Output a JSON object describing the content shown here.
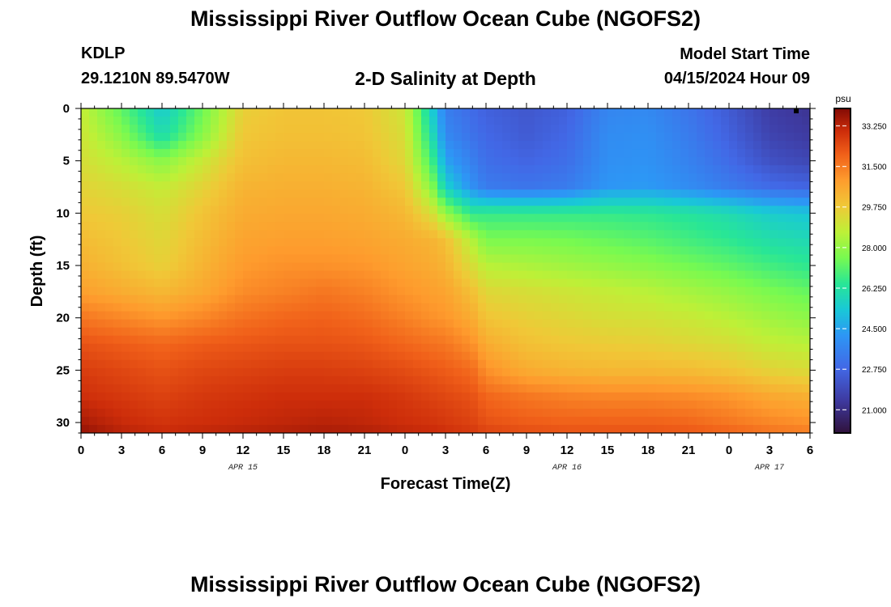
{
  "header": {
    "title": "Mississippi River Outflow Ocean Cube (NGOFS2)",
    "station": "KDLP",
    "coordinates": "29.1210N  89.5470W",
    "plot_title": "2-D Salinity at Depth",
    "model_start_label": "Model Start Time",
    "model_start_value": "04/15/2024 Hour 09"
  },
  "footer": {
    "title": "Mississippi River Outflow Ocean Cube (NGOFS2)"
  },
  "chart_data": {
    "type": "heatmap",
    "title": "2-D Salinity at Depth",
    "xlabel": "Forecast Time(Z)",
    "ylabel": "Depth (ft)",
    "x_tick_labels": [
      "0",
      "3",
      "6",
      "9",
      "12",
      "15",
      "18",
      "21",
      "0",
      "3",
      "6",
      "9",
      "12",
      "15",
      "18",
      "21",
      "0",
      "3",
      "6"
    ],
    "x_hours": [
      0,
      3,
      6,
      9,
      12,
      15,
      18,
      21,
      24,
      27,
      30,
      33,
      36,
      39,
      42,
      45,
      48,
      51,
      54
    ],
    "date_labels": [
      {
        "label": "APR 15",
        "hour": 12
      },
      {
        "label": "APR 16",
        "hour": 36
      },
      {
        "label": "APR 17",
        "hour": 51
      }
    ],
    "xlim": [
      0,
      54
    ],
    "y_ticks": [
      0,
      5,
      10,
      15,
      20,
      25,
      30
    ],
    "ylim": [
      0,
      31
    ],
    "y_inverted": true,
    "colorbar": {
      "unit": "psu",
      "min": 20.0,
      "max": 34.0,
      "tick_values": [
        33.25,
        31.5,
        29.75,
        28.0,
        26.25,
        24.5,
        22.75,
        21.0
      ],
      "tick_labels": [
        "33.250",
        "31.500",
        "29.750",
        "28.000",
        "26.250",
        "24.500",
        "22.750",
        "21.000"
      ]
    },
    "grid": {
      "depths": [
        0,
        2.5,
        5,
        7.5,
        10,
        12.5,
        15,
        17.5,
        20,
        22.5,
        25,
        27.5,
        30,
        31
      ],
      "hours": [
        0,
        3,
        6,
        9,
        12,
        15,
        18,
        21,
        24,
        26,
        27,
        29,
        30,
        33,
        36,
        39,
        42,
        45,
        48,
        51,
        54
      ],
      "salinity": [
        [
          28.8,
          27.2,
          25.4,
          27.4,
          29.6,
          29.9,
          29.9,
          29.8,
          29.0,
          25.5,
          23.5,
          22.9,
          22.6,
          22.3,
          22.6,
          23.7,
          23.8,
          23.2,
          22.4,
          21.5,
          21.2
        ],
        [
          29.0,
          27.8,
          26.0,
          27.8,
          29.8,
          30.0,
          30.0,
          29.9,
          29.2,
          26.0,
          23.8,
          23.1,
          22.8,
          22.4,
          22.8,
          23.9,
          24.0,
          23.4,
          22.6,
          21.7,
          21.4
        ],
        [
          29.2,
          28.6,
          27.8,
          28.9,
          30.0,
          30.2,
          30.2,
          30.1,
          29.4,
          26.8,
          24.5,
          23.5,
          23.0,
          22.7,
          23.0,
          24.0,
          24.1,
          23.6,
          22.9,
          22.1,
          21.8
        ],
        [
          29.5,
          29.2,
          28.8,
          29.5,
          30.3,
          30.4,
          30.4,
          30.3,
          29.8,
          27.8,
          25.6,
          24.0,
          23.4,
          23.2,
          23.4,
          24.2,
          24.3,
          23.9,
          23.4,
          22.9,
          22.7
        ],
        [
          29.8,
          29.6,
          29.2,
          29.9,
          30.5,
          30.6,
          30.6,
          30.5,
          30.2,
          29.2,
          28.0,
          26.5,
          26.6,
          26.6,
          26.6,
          26.6,
          26.5,
          26.3,
          26.0,
          25.5,
          25.3
        ],
        [
          30.1,
          29.8,
          29.4,
          30.1,
          30.7,
          30.8,
          30.8,
          30.7,
          30.5,
          30.3,
          30.0,
          28.5,
          27.6,
          27.6,
          27.5,
          27.3,
          27.1,
          26.8,
          26.5,
          26.1,
          25.9
        ],
        [
          30.4,
          30.0,
          29.6,
          30.3,
          30.9,
          31.1,
          31.1,
          31.0,
          30.7,
          30.5,
          30.3,
          29.2,
          28.6,
          28.4,
          28.2,
          28.0,
          27.8,
          27.5,
          27.2,
          26.8,
          26.5
        ],
        [
          30.8,
          30.5,
          30.2,
          30.6,
          31.2,
          31.4,
          31.6,
          31.4,
          31.0,
          30.8,
          30.7,
          30.0,
          29.4,
          29.2,
          29.0,
          28.8,
          28.6,
          28.3,
          28.0,
          27.6,
          27.3
        ],
        [
          31.6,
          31.3,
          31.0,
          31.3,
          31.7,
          31.9,
          32.0,
          31.8,
          31.4,
          31.1,
          31.0,
          30.5,
          29.9,
          29.6,
          29.4,
          29.2,
          29.1,
          28.9,
          28.6,
          28.2,
          27.9
        ],
        [
          32.3,
          32.1,
          31.9,
          32.1,
          32.2,
          32.3,
          32.3,
          32.2,
          31.9,
          31.7,
          31.6,
          31.1,
          30.5,
          30.0,
          29.8,
          29.7,
          29.6,
          29.4,
          29.2,
          28.8,
          28.6
        ],
        [
          32.7,
          32.5,
          32.3,
          32.5,
          32.6,
          32.7,
          32.7,
          32.6,
          32.4,
          32.2,
          32.1,
          31.8,
          31.1,
          30.5,
          30.3,
          30.2,
          30.2,
          30.1,
          29.9,
          29.5,
          29.3
        ],
        [
          33.0,
          32.8,
          32.6,
          32.8,
          32.9,
          33.0,
          33.0,
          33.0,
          32.8,
          32.6,
          32.5,
          32.3,
          31.9,
          31.6,
          31.4,
          31.3,
          31.3,
          31.2,
          31.0,
          30.6,
          30.4
        ],
        [
          33.5,
          33.1,
          32.9,
          33.0,
          33.1,
          33.2,
          33.3,
          33.2,
          33.0,
          32.9,
          32.8,
          32.6,
          32.3,
          32.1,
          32.0,
          32.0,
          32.0,
          31.9,
          31.6,
          31.3,
          31.1
        ],
        [
          33.8,
          33.3,
          33.1,
          33.2,
          33.3,
          33.4,
          33.5,
          33.4,
          33.2,
          33.1,
          33.0,
          32.8,
          32.6,
          32.4,
          32.3,
          32.3,
          32.3,
          32.2,
          32.0,
          31.7,
          31.5
        ]
      ]
    }
  }
}
